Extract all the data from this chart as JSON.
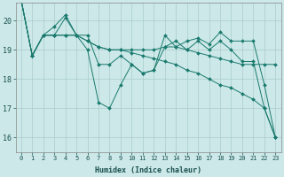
{
  "title": "",
  "xlabel": "Humidex (Indice chaleur)",
  "ylabel": "",
  "bg_color": "#cce8e8",
  "grid_color": "#aacccc",
  "line_color": "#1a7a6e",
  "xlim": [
    -0.5,
    23.5
  ],
  "ylim": [
    15.5,
    20.6
  ],
  "yticks": [
    16,
    17,
    18,
    19,
    20
  ],
  "xticks": [
    0,
    1,
    2,
    3,
    4,
    5,
    6,
    7,
    8,
    9,
    10,
    11,
    12,
    13,
    14,
    15,
    16,
    17,
    18,
    19,
    20,
    21,
    22,
    23
  ],
  "lines": [
    [
      20.7,
      18.8,
      19.5,
      19.5,
      20.1,
      19.5,
      19.0,
      17.2,
      17.0,
      17.8,
      18.5,
      18.2,
      18.3,
      19.1,
      19.3,
      19.0,
      19.3,
      19.0,
      19.3,
      19.0,
      18.6,
      18.6,
      17.0,
      16.0
    ],
    [
      20.7,
      18.8,
      19.5,
      19.8,
      20.2,
      19.5,
      19.5,
      18.5,
      18.5,
      18.8,
      18.5,
      18.2,
      18.3,
      19.5,
      19.1,
      19.3,
      19.4,
      19.2,
      19.6,
      19.3,
      19.3,
      19.3,
      17.8,
      16.0
    ],
    [
      20.7,
      18.8,
      19.5,
      19.5,
      19.5,
      19.5,
      19.3,
      19.1,
      19.0,
      19.0,
      19.0,
      19.0,
      19.0,
      19.1,
      19.1,
      19.0,
      18.9,
      18.8,
      18.7,
      18.6,
      18.5,
      18.5,
      18.5,
      18.5
    ],
    [
      20.7,
      18.8,
      19.5,
      19.5,
      19.5,
      19.5,
      19.3,
      19.1,
      19.0,
      19.0,
      18.9,
      18.8,
      18.7,
      18.6,
      18.5,
      18.3,
      18.2,
      18.0,
      17.8,
      17.7,
      17.5,
      17.3,
      17.0,
      16.0
    ]
  ],
  "tick_fontsize": 5,
  "xlabel_fontsize": 6,
  "marker_size": 2.0,
  "linewidth": 0.7
}
